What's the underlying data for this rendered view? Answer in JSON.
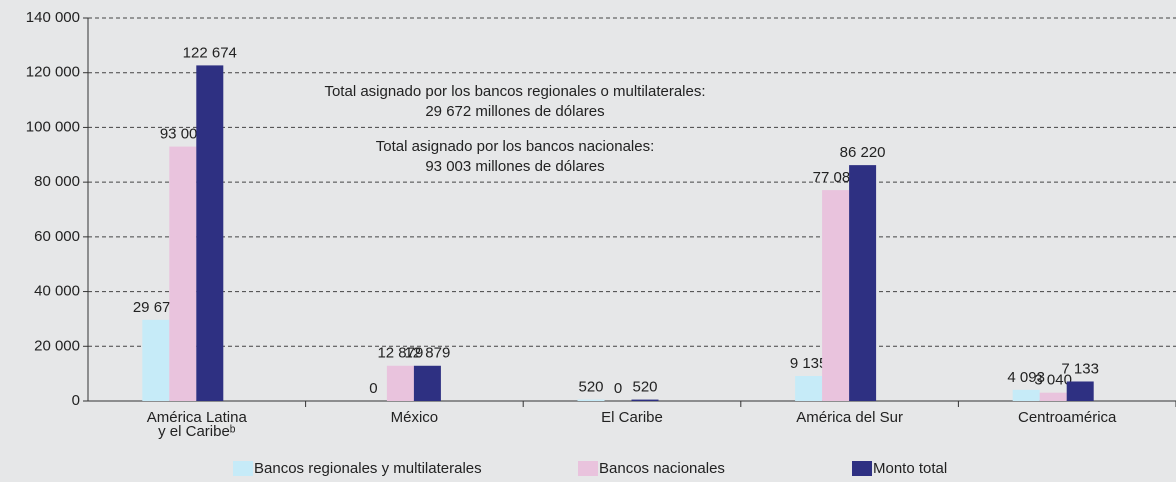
{
  "chart_data": {
    "type": "bar",
    "categories": [
      [
        "América Latina",
        "y el Caribeᵇ"
      ],
      [
        "México"
      ],
      [
        "El Caribe"
      ],
      [
        "América del Sur"
      ],
      [
        "Centroamérica"
      ]
    ],
    "series": [
      {
        "name": "Bancos regionales y multilaterales",
        "color": "#c6ebf8",
        "values": [
          29671,
          0,
          520,
          9135,
          4093
        ],
        "value_labels": [
          "29 671",
          "0",
          "520",
          "9 135",
          "4 093"
        ]
      },
      {
        "name": "Bancos nacionales",
        "color": "#e9c3dd",
        "values": [
          93003,
          12879,
          0,
          77084,
          3040
        ],
        "value_labels": [
          "93 003",
          "12 879",
          "0",
          "77 084",
          "3 040"
        ]
      },
      {
        "name": "Monto total",
        "color": "#2e3082",
        "values": [
          122674,
          12879,
          520,
          86220,
          7133
        ],
        "value_labels": [
          "122 674",
          "12 879",
          "520",
          "86 220",
          "7 133"
        ]
      }
    ],
    "annotations": [
      "Total asignado por los bancos regionales o multilaterales:",
      "29 672 millones de dólares",
      "Total asignado por los bancos nacionales:",
      "93 003 millones de dólares"
    ],
    "ylim": [
      0,
      140000
    ],
    "yticks": [
      0,
      {
        "value": 20000,
        "label": "20 000"
      },
      {
        "value": 40000,
        "label": "40 000"
      },
      {
        "value": 60000,
        "label": "60 000"
      },
      {
        "value": 80000,
        "label": "80 000"
      },
      {
        "value": 100000,
        "label": "100 000"
      },
      {
        "value": 120000,
        "label": "120 000"
      },
      {
        "value": 140000,
        "label": "140 000"
      }
    ],
    "grid": true,
    "legend": "bottom"
  }
}
